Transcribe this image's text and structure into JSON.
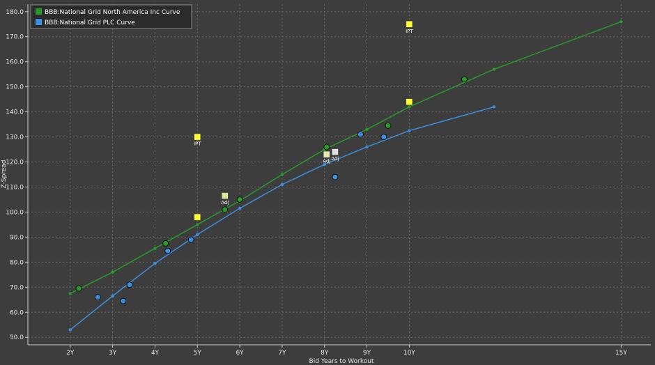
{
  "chart_data": {
    "type": "scatter",
    "title": "",
    "xlabel": "Bid Years to Workout",
    "ylabel": "Z-Spread",
    "x_ticks": [
      {
        "value": 2,
        "label": "2Y"
      },
      {
        "value": 3,
        "label": "3Y"
      },
      {
        "value": 4,
        "label": "4Y"
      },
      {
        "value": 5,
        "label": "5Y"
      },
      {
        "value": 6,
        "label": "6Y"
      },
      {
        "value": 7,
        "label": "7Y"
      },
      {
        "value": 8,
        "label": "8Y"
      },
      {
        "value": 9,
        "label": "9Y"
      },
      {
        "value": 10,
        "label": "10Y"
      },
      {
        "value": 15,
        "label": "15Y"
      }
    ],
    "y_ticks": [
      {
        "value": 50,
        "label": "50.0"
      },
      {
        "value": 60,
        "label": "60.0"
      },
      {
        "value": 70,
        "label": "70.0"
      },
      {
        "value": 80,
        "label": "80.0"
      },
      {
        "value": 90,
        "label": "90.0"
      },
      {
        "value": 100,
        "label": "100.0"
      },
      {
        "value": 110,
        "label": "110.0"
      },
      {
        "value": 120,
        "label": "120.0"
      },
      {
        "value": 130,
        "label": "130.0"
      },
      {
        "value": 140,
        "label": "140.0"
      },
      {
        "value": 150,
        "label": "150.0"
      },
      {
        "value": 160,
        "label": "160.0"
      },
      {
        "value": 170,
        "label": "170.0"
      },
      {
        "value": 180,
        "label": "180.0"
      }
    ],
    "xlim": [
      1.0,
      15.7
    ],
    "ylim": [
      47,
      183
    ],
    "grid": true,
    "legend_position": "top-left",
    "series": [
      {
        "name": "BBB:National Grid North America Inc Curve",
        "color": "#2a9a2a",
        "curve": [
          [
            2,
            67.5
          ],
          [
            3,
            76
          ],
          [
            4,
            85.5
          ],
          [
            5,
            95
          ],
          [
            6,
            104.5
          ],
          [
            7,
            115
          ],
          [
            8,
            125
          ],
          [
            9,
            133
          ],
          [
            10,
            142
          ],
          [
            12,
            157
          ],
          [
            15,
            176
          ]
        ],
        "points": [
          [
            2.2,
            69.5
          ],
          [
            4.25,
            87.5
          ],
          [
            5.65,
            101
          ],
          [
            6.0,
            105
          ],
          [
            8.05,
            126
          ],
          [
            9.5,
            134.5
          ],
          [
            11.3,
            153
          ]
        ]
      },
      {
        "name": "BBB:National Grid PLC Curve",
        "color": "#3c8fe0",
        "curve": [
          [
            2,
            53
          ],
          [
            3,
            66.5
          ],
          [
            4,
            79.5
          ],
          [
            5,
            91
          ],
          [
            6,
            101.5
          ],
          [
            7,
            111
          ],
          [
            8,
            119
          ],
          [
            9,
            126
          ],
          [
            10,
            132.5
          ],
          [
            12,
            142
          ]
        ],
        "points": [
          [
            2.65,
            66
          ],
          [
            3.25,
            64.5
          ],
          [
            3.4,
            71
          ],
          [
            4.3,
            84.5
          ],
          [
            4.85,
            89
          ],
          [
            8.25,
            114
          ],
          [
            8.85,
            131
          ],
          [
            9.4,
            130
          ]
        ]
      }
    ],
    "annotations": [
      {
        "x": 5.0,
        "y": 130,
        "color": "#ffff33",
        "label": "IPT"
      },
      {
        "x": 10.0,
        "y": 175,
        "color": "#ffff33",
        "label": "IPT"
      },
      {
        "x": 10.0,
        "y": 144,
        "color": "#ffff33",
        "label": ""
      },
      {
        "x": 5.0,
        "y": 98,
        "color": "#ffff33",
        "label": ""
      },
      {
        "x": 5.65,
        "y": 106.5,
        "color": "#d8e8a0",
        "label": "Adj"
      },
      {
        "x": 8.05,
        "y": 123,
        "color": "#e8e8b0",
        "label": "Adj"
      },
      {
        "x": 8.25,
        "y": 124,
        "color": "#e0e0e0",
        "label": "Adj"
      }
    ]
  }
}
